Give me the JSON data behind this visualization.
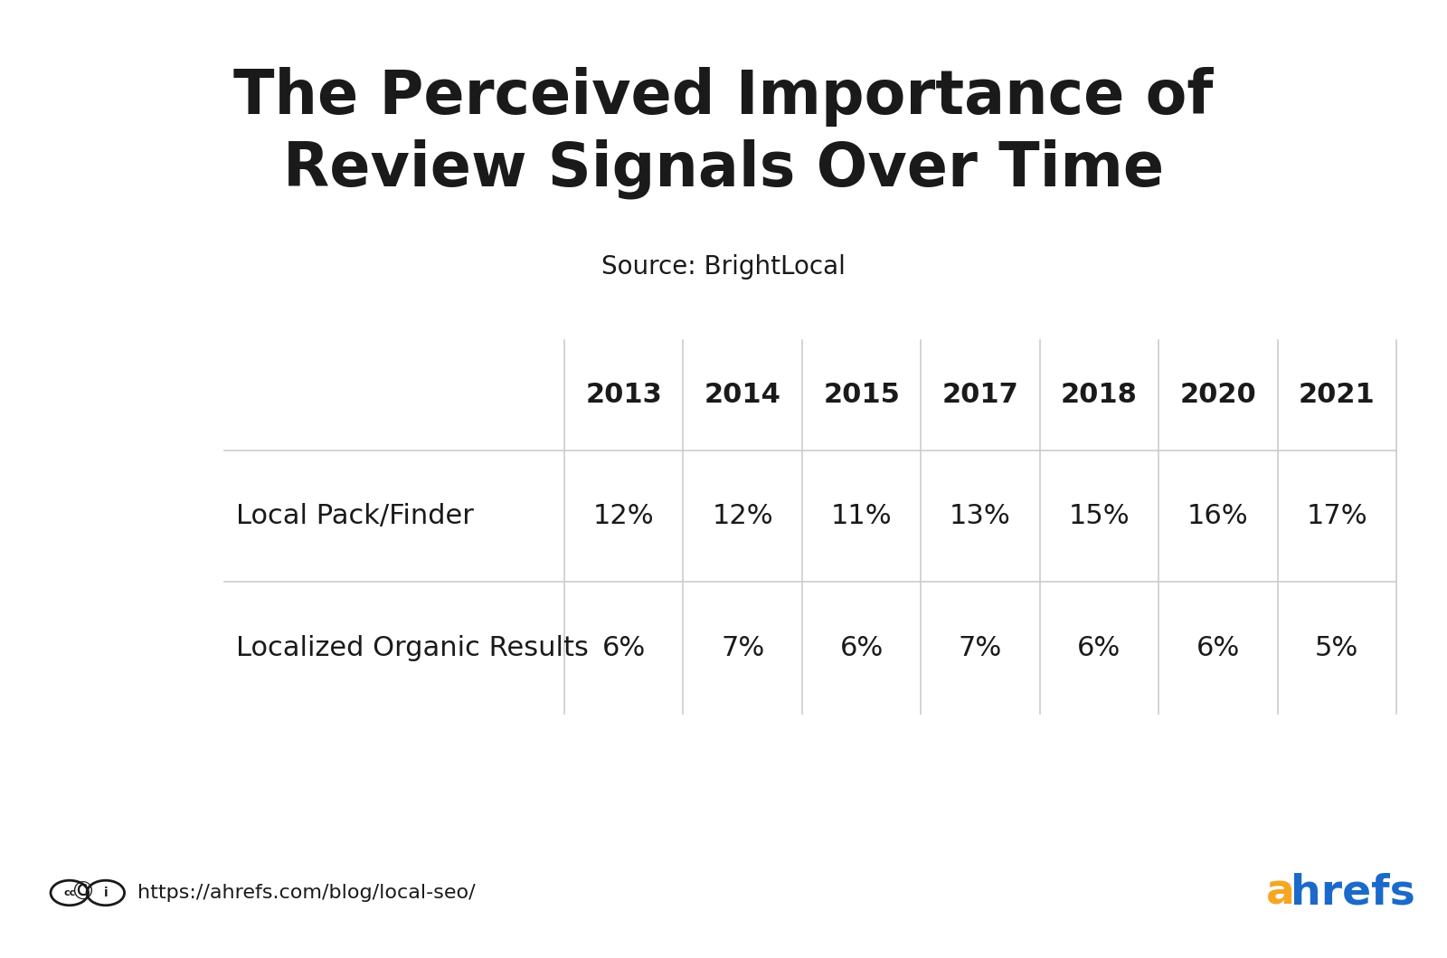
{
  "title": "The Perceived Importance of\nReview Signals Over Time",
  "subtitle": "Source: BrightLocal",
  "columns": [
    "2013",
    "2014",
    "2015",
    "2017",
    "2018",
    "2020",
    "2021"
  ],
  "rows": [
    {
      "label": "Local Pack/Finder",
      "values": [
        "12%",
        "12%",
        "11%",
        "13%",
        "15%",
        "16%",
        "17%"
      ]
    },
    {
      "label": "Localized Organic Results",
      "values": [
        "6%",
        "7%",
        "6%",
        "7%",
        "6%",
        "6%",
        "5%"
      ]
    }
  ],
  "footer_url": "https://ahrefs.com/blog/local-seo/",
  "bg_color": "#ffffff",
  "text_color": "#1a1a1a",
  "line_color": "#cccccc",
  "title_fontsize": 48,
  "subtitle_fontsize": 20,
  "header_fontsize": 22,
  "cell_fontsize": 22,
  "row_label_fontsize": 22,
  "footer_fontsize": 16,
  "ahrefs_orange": "#f5a623",
  "ahrefs_blue": "#1b6ac9"
}
